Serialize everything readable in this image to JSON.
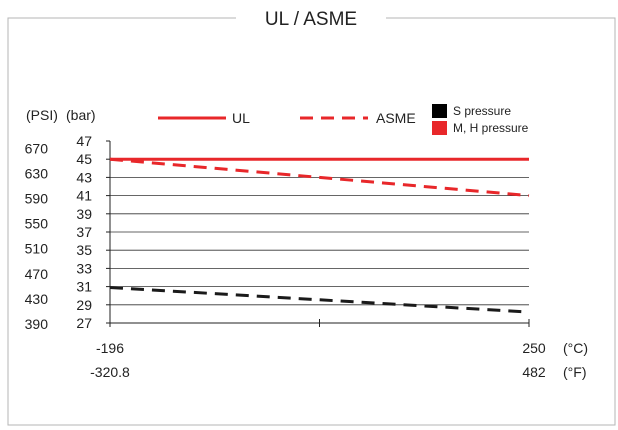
{
  "chart_data": {
    "type": "line",
    "title": "UL / ASME",
    "unit_psi": "(PSI)",
    "unit_bar": "(bar)",
    "unit_c": "(°C)",
    "unit_f": "(°F)",
    "y_ticks_bar": [
      "47",
      "45",
      "43",
      "41",
      "39",
      "37",
      "35",
      "33",
      "31",
      "29",
      "27"
    ],
    "y_ticks_psi": [
      "670",
      "630",
      "590",
      "550",
      "510",
      "470",
      "430",
      "390"
    ],
    "ylim": [
      27,
      47
    ],
    "xlim": [
      -196,
      250
    ],
    "x_ticks_c": [
      "-196",
      "250"
    ],
    "x_ticks_f": [
      "-320.8",
      "482"
    ],
    "grid": true,
    "series": [
      {
        "name": "UL",
        "group": "M, H pressure",
        "style": "solid",
        "color": "#e8272a",
        "x": [
          -196,
          250
        ],
        "y": [
          45,
          45
        ]
      },
      {
        "name": "ASME",
        "group": "M, H pressure",
        "style": "dashed",
        "color": "#e8272a",
        "x": [
          -196,
          250
        ],
        "y": [
          45,
          41
        ]
      },
      {
        "name": "ASME",
        "group": "S pressure",
        "style": "dashed",
        "color": "#1a1a1a",
        "x": [
          -196,
          250
        ],
        "y": [
          30.9,
          28.2
        ]
      }
    ],
    "legend": {
      "placement": "top",
      "line_items": [
        {
          "label": "UL",
          "style": "solid",
          "color": "#e8272a"
        },
        {
          "label": "ASME",
          "style": "dashed",
          "color": "#e8272a"
        }
      ],
      "color_items": [
        {
          "label": "S pressure",
          "color": "#000000"
        },
        {
          "label": "M, H pressure",
          "color": "#e8272a"
        }
      ]
    }
  }
}
